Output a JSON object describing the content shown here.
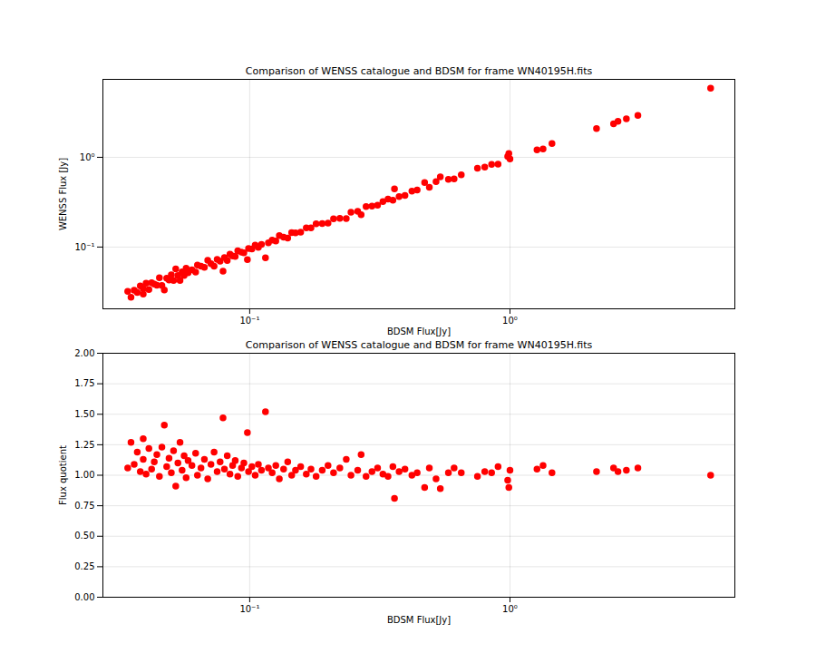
{
  "chart_data": [
    {
      "type": "scatter",
      "title": "Comparison of WENSS catalogue and BDSM for frame WN40195H.fits",
      "x_label": "BDSM Flux[Jy]",
      "y_label": "WENSS Flux [Jy]",
      "color": "red",
      "marker": "circle",
      "log": true,
      "grid": true,
      "xlim": [
        0.0273,
        7.31
      ],
      "ylim": [
        0.0205,
        7.39
      ],
      "xticks": [
        {
          "value": 0.1,
          "label": "10⁻¹"
        },
        {
          "value": 1,
          "label": "10⁰"
        }
      ],
      "yticks": [
        {
          "value": 0.1,
          "label": "10⁻¹"
        },
        {
          "value": 1,
          "label": "10⁰"
        }
      ],
      "x": [
        0.034,
        0.035,
        0.036,
        0.037,
        0.038,
        0.039,
        0.039,
        0.04,
        0.041,
        0.042,
        0.043,
        0.044,
        0.045,
        0.046,
        0.047,
        0.048,
        0.049,
        0.05,
        0.051,
        0.052,
        0.053,
        0.054,
        0.055,
        0.056,
        0.057,
        0.058,
        0.06,
        0.062,
        0.063,
        0.065,
        0.067,
        0.069,
        0.071,
        0.073,
        0.075,
        0.077,
        0.079,
        0.08,
        0.082,
        0.084,
        0.086,
        0.088,
        0.09,
        0.093,
        0.095,
        0.098,
        0.099,
        0.102,
        0.105,
        0.108,
        0.111,
        0.115,
        0.118,
        0.122,
        0.126,
        0.13,
        0.135,
        0.14,
        0.145,
        0.15,
        0.157,
        0.165,
        0.172,
        0.18,
        0.19,
        0.2,
        0.21,
        0.222,
        0.235,
        0.245,
        0.26,
        0.268,
        0.28,
        0.295,
        0.31,
        0.325,
        0.34,
        0.355,
        0.36,
        0.375,
        0.395,
        0.42,
        0.44,
        0.47,
        0.49,
        0.52,
        0.54,
        0.58,
        0.61,
        0.65,
        0.75,
        0.8,
        0.85,
        0.9,
        0.98,
        0.99,
        1.0,
        1.27,
        1.34,
        1.45,
        2.15,
        2.5,
        2.6,
        2.8,
        3.1,
        5.9
      ],
      "values": [
        0.0321,
        0.0276,
        0.033,
        0.0311,
        0.0369,
        0.0345,
        0.03,
        0.0396,
        0.0336,
        0.04,
        0.0387,
        0.0376,
        0.0455,
        0.0374,
        0.0333,
        0.0449,
        0.043,
        0.049,
        0.0425,
        0.0571,
        0.0482,
        0.0425,
        0.0529,
        0.0483,
        0.0582,
        0.0518,
        0.0556,
        0.0525,
        0.063,
        0.0613,
        0.0593,
        0.0711,
        0.0651,
        0.0613,
        0.0728,
        0.0694,
        0.0537,
        0.0762,
        0.0707,
        0.0832,
        0.0796,
        0.0786,
        0.0909,
        0.0877,
        0.0864,
        0.0726,
        0.0961,
        0.0953,
        0.105,
        0.0991,
        0.1067,
        0.0757,
        0.1113,
        0.1196,
        0.1167,
        0.134,
        0.1286,
        0.1261,
        0.145,
        0.1442,
        0.1467,
        0.1634,
        0.1638,
        0.1818,
        0.1827,
        0.1852,
        0.2059,
        0.2094,
        0.208,
        0.245,
        0.25,
        0.2291,
        0.2828,
        0.2864,
        0.2925,
        0.3218,
        0.3434,
        0.3318,
        0.4444,
        0.3641,
        0.3762,
        0.42,
        0.4314,
        0.5222,
        0.4623,
        0.5361,
        0.6067,
        0.5686,
        0.5755,
        0.6373,
        0.7576,
        0.7767,
        0.8333,
        0.8411,
        1.0208,
        1.1,
        0.9615,
        1.2095,
        1.2407,
        1.4216,
        2.0874,
        2.3585,
        2.5243,
        2.6923,
        2.9245,
        5.9
      ]
    },
    {
      "type": "scatter",
      "title": "Comparison of WENSS catalogue and BDSM for frame WN40195H.fits",
      "x_label": "BDSM Flux[Jy]",
      "y_label": "Flux quotient",
      "color": "red",
      "marker": "circle",
      "log": "x",
      "grid": true,
      "xlim": [
        0.0273,
        7.31
      ],
      "ylim": [
        0,
        2
      ],
      "xticks": [
        {
          "value": 0.1,
          "label": "10⁻¹"
        },
        {
          "value": 1,
          "label": "10⁰"
        }
      ],
      "yticks": [
        {
          "value": 0,
          "label": "0.00"
        },
        {
          "value": 0.25,
          "label": "0.25"
        },
        {
          "value": 0.5,
          "label": "0.50"
        },
        {
          "value": 0.75,
          "label": "0.75"
        },
        {
          "value": 1,
          "label": "1.00"
        },
        {
          "value": 1.25,
          "label": "1.25"
        },
        {
          "value": 1.5,
          "label": "1.50"
        },
        {
          "value": 1.75,
          "label": "1.75"
        },
        {
          "value": 2,
          "label": "2.00"
        }
      ],
      "x": [
        0.034,
        0.035,
        0.036,
        0.037,
        0.038,
        0.039,
        0.039,
        0.04,
        0.041,
        0.042,
        0.043,
        0.044,
        0.045,
        0.046,
        0.047,
        0.048,
        0.049,
        0.05,
        0.051,
        0.052,
        0.053,
        0.054,
        0.055,
        0.056,
        0.057,
        0.058,
        0.06,
        0.062,
        0.063,
        0.065,
        0.067,
        0.069,
        0.071,
        0.073,
        0.075,
        0.077,
        0.079,
        0.08,
        0.082,
        0.084,
        0.086,
        0.088,
        0.09,
        0.093,
        0.095,
        0.098,
        0.099,
        0.102,
        0.105,
        0.108,
        0.111,
        0.115,
        0.118,
        0.122,
        0.126,
        0.13,
        0.135,
        0.14,
        0.145,
        0.15,
        0.157,
        0.165,
        0.172,
        0.18,
        0.19,
        0.2,
        0.21,
        0.222,
        0.235,
        0.245,
        0.26,
        0.268,
        0.28,
        0.295,
        0.31,
        0.325,
        0.34,
        0.355,
        0.36,
        0.375,
        0.395,
        0.42,
        0.44,
        0.47,
        0.49,
        0.52,
        0.54,
        0.58,
        0.61,
        0.65,
        0.75,
        0.8,
        0.85,
        0.9,
        0.98,
        0.99,
        1.0,
        1.27,
        1.34,
        1.45,
        2.15,
        2.5,
        2.6,
        2.8,
        3.1,
        5.9
      ],
      "values": [
        1.06,
        1.27,
        1.09,
        1.19,
        1.03,
        1.13,
        1.3,
        1.01,
        1.22,
        1.05,
        1.11,
        1.17,
        0.99,
        1.23,
        1.41,
        1.07,
        1.14,
        1.02,
        1.2,
        0.91,
        1.1,
        1.27,
        1.04,
        1.16,
        0.98,
        1.12,
        1.08,
        1.18,
        1.0,
        1.06,
        1.13,
        0.97,
        1.09,
        1.19,
        1.03,
        1.11,
        1.47,
        1.05,
        1.16,
        1.01,
        1.08,
        1.12,
        0.99,
        1.06,
        1.1,
        1.35,
        1.03,
        1.07,
        1.0,
        1.09,
        1.04,
        1.52,
        1.06,
        1.02,
        1.08,
        0.97,
        1.05,
        1.11,
        1.0,
        1.04,
        1.07,
        1.01,
        1.05,
        0.99,
        1.04,
        1.08,
        1.02,
        1.06,
        1.13,
        1.0,
        1.04,
        1.17,
        0.99,
        1.03,
        1.06,
        1.01,
        0.99,
        1.07,
        0.81,
        1.03,
        1.05,
        1.0,
        1.02,
        0.9,
        1.06,
        0.97,
        0.89,
        1.02,
        1.06,
        1.02,
        0.99,
        1.03,
        1.02,
        1.07,
        0.96,
        0.9,
        1.04,
        1.05,
        1.08,
        1.02,
        1.03,
        1.06,
        1.03,
        1.04,
        1.06,
        1.0
      ]
    }
  ]
}
